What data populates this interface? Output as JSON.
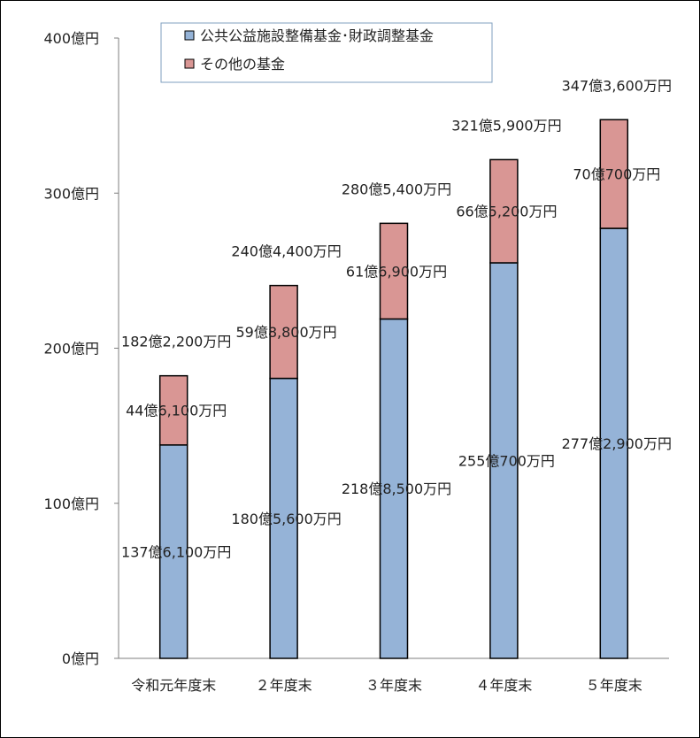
{
  "chart_data": {
    "type": "bar",
    "stacked": true,
    "title": "",
    "xlabel": "",
    "ylabel": "",
    "categories": [
      "令和元年度末",
      "２年度末",
      "３年度末",
      "４年度末",
      "５年度末"
    ],
    "ylim": [
      0,
      400
    ],
    "yticks": [
      {
        "value": 0,
        "label": "0億円"
      },
      {
        "value": 100,
        "label": "100億円"
      },
      {
        "value": 200,
        "label": "200億円"
      },
      {
        "value": 300,
        "label": "300億円"
      },
      {
        "value": 400,
        "label": "400億円"
      }
    ],
    "grid": false,
    "legend_position": "top",
    "series": [
      {
        "name": "公共公益施設整備基金･財政調整基金",
        "color": "#95b3d7",
        "values": [
          137.61,
          180.56,
          218.85,
          255.07,
          277.29
        ],
        "labels": [
          "137億6,100万円",
          "180億5,600万円",
          "218億8,500万円",
          "255億700万円",
          "277億2,900万円"
        ]
      },
      {
        "name": "その他の基金",
        "color": "#d99694",
        "values": [
          44.61,
          59.88,
          61.69,
          66.52,
          70.07
        ],
        "labels": [
          "44億6,100万円",
          "59億8,800万円",
          "61億6,900万円",
          "66億5,200万円",
          "70億700万円"
        ]
      }
    ],
    "totals": [
      182.22,
      240.44,
      280.54,
      321.59,
      347.36
    ],
    "total_labels": [
      "182億2,200万円",
      "240億4,400万円",
      "280億5,400万円",
      "321億5,900万円",
      "347億3,600万円"
    ]
  }
}
